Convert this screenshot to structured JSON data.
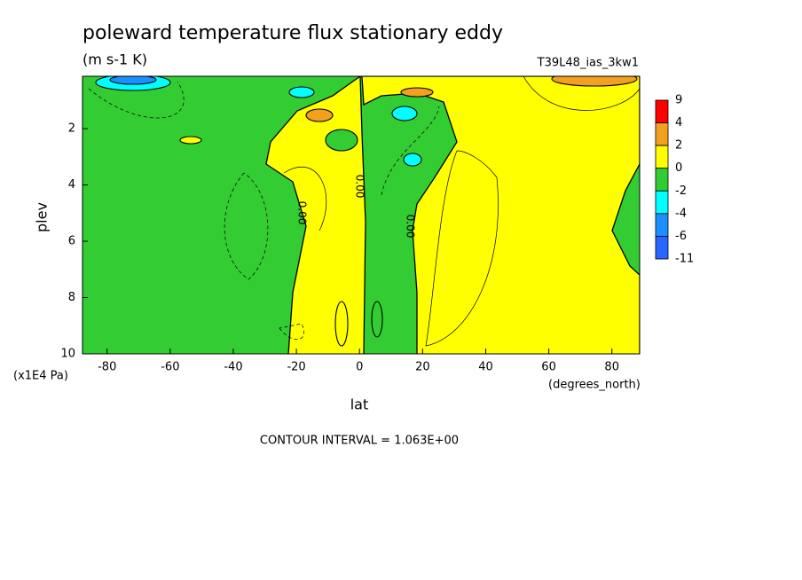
{
  "chart_data": {
    "type": "contour",
    "title": "poleward temperature flux stationary eddy",
    "subtitle": "(m s-1 K)",
    "dataset": "T39L48_ias_3kw1",
    "xlabel": "lat",
    "x_units": "(degrees_north)",
    "ylabel": "plev",
    "y_units": "(x1E4 Pa)",
    "xlim": [
      -87.8,
      88.8
    ],
    "ylim": [
      10,
      0.14
    ],
    "xticks": [
      -80,
      -60,
      -40,
      -20,
      0,
      20,
      40,
      60,
      80
    ],
    "yticks": [
      2,
      4,
      6,
      8,
      10
    ],
    "colorbar": {
      "levels": [
        9,
        4,
        2,
        0,
        -2,
        -4,
        -6,
        -11
      ],
      "colors": [
        "#ff0000",
        "#f2a01e",
        "#ffff00",
        "#33cc33",
        "#00ffff",
        "#1a90ff",
        "#2864ff"
      ]
    },
    "contour_labels": [
      "0.00",
      "0.00",
      "0.00"
    ],
    "note": "CONTOUR INTERVAL = 1.063E+00"
  }
}
